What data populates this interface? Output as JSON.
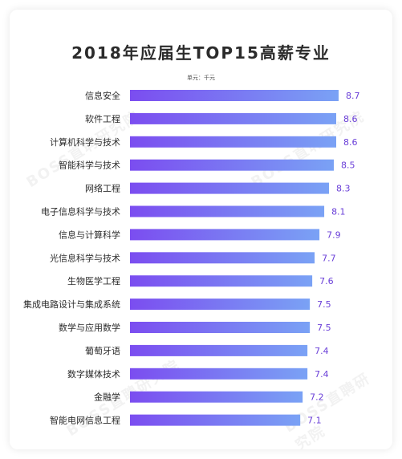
{
  "chart_data": {
    "type": "bar",
    "orientation": "horizontal",
    "title": "2018年应届生TOP15高薪专业",
    "unit_note": "单元：千元",
    "categories": [
      "信息安全",
      "软件工程",
      "计算机科学与技术",
      "智能科学与技术",
      "网络工程",
      "电子信息科学与技术",
      "信息与计算科学",
      "光信息科学与技术",
      "生物医学工程",
      "集成电路设计与集成系统",
      "数学与应用数学",
      "葡萄牙语",
      "数字媒体技术",
      "金融学",
      "智能电网信息工程"
    ],
    "values": [
      8.7,
      8.6,
      8.6,
      8.5,
      8.3,
      8.1,
      7.9,
      7.7,
      7.6,
      7.5,
      7.5,
      7.4,
      7.4,
      7.2,
      7.1
    ],
    "bar_gradient": [
      "#7b4df0",
      "#7aa2f5"
    ],
    "value_color": "#6a3fd8",
    "grid": false
  },
  "watermark": "BOSS直聘研究院"
}
